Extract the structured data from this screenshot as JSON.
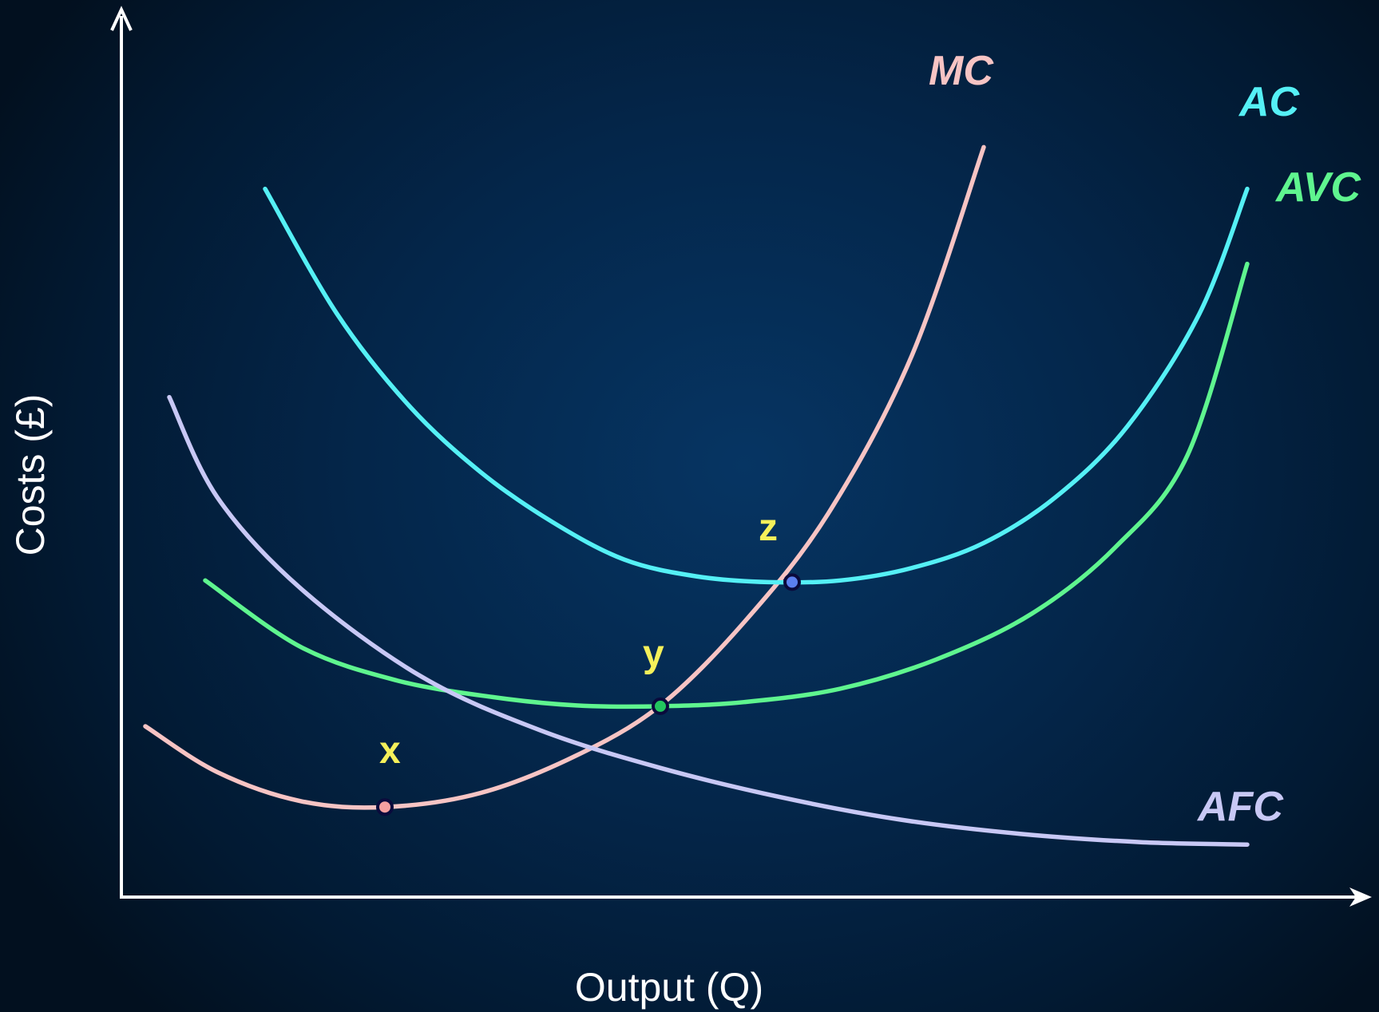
{
  "chart_data": {
    "type": "line",
    "title": "",
    "xlabel": "Output (Q)",
    "ylabel": "Costs (£)",
    "xlim": [
      0,
      100
    ],
    "ylim": [
      0,
      100
    ],
    "grid": false,
    "legend": "inline labels at curve ends",
    "background": "#04264a",
    "series": [
      {
        "name": "MC",
        "color": "#f7c4c4",
        "x": [
          2,
          8,
          15,
          22,
          30,
          38,
          45,
          52,
          59,
          66,
          72
        ],
        "y": [
          20.5,
          15,
          11.5,
          10.8,
          12.5,
          17,
          23,
          33,
          46,
          65,
          90
        ]
      },
      {
        "name": "AC",
        "color": "#55f0f5",
        "x": [
          12,
          18,
          24,
          30,
          36,
          42,
          48,
          54,
          60,
          66,
          72,
          78,
          84,
          90,
          94
        ],
        "y": [
          85,
          70,
          59,
          51,
          45,
          40.5,
          38.5,
          37.8,
          38,
          39.5,
          42.5,
          48,
          56.5,
          70,
          85
        ]
      },
      {
        "name": "AVC",
        "color": "#5ff58f",
        "x": [
          7,
          15,
          23,
          31,
          38,
          45,
          52,
          60,
          68,
          76,
          83,
          89,
          94
        ],
        "y": [
          38,
          30,
          26,
          24,
          23,
          22.9,
          23.4,
          25,
          28.5,
          34,
          42,
          53,
          76
        ]
      },
      {
        "name": "AFC",
        "color": "#c8c8f5",
        "x": [
          4,
          8,
          15,
          25,
          35,
          45,
          55,
          65,
          75,
          85,
          94
        ],
        "y": [
          60,
          48,
          37,
          26.5,
          20,
          15.5,
          12,
          9.3,
          7.6,
          6.6,
          6.3
        ]
      }
    ],
    "points": [
      {
        "label": "x",
        "x": 22,
        "y": 10.8,
        "on": "MC minimum",
        "fill": "#f5a0a0",
        "label_color": "#f5f05a"
      },
      {
        "label": "y",
        "x": 45,
        "y": 22.9,
        "on": "AVC minimum",
        "fill": "#22c55e",
        "label_color": "#f5f05a"
      },
      {
        "label": "z",
        "x": 56,
        "y": 37.8,
        "on": "AC minimum",
        "fill": "#5b7ff0",
        "label_color": "#f5f05a"
      }
    ]
  }
}
